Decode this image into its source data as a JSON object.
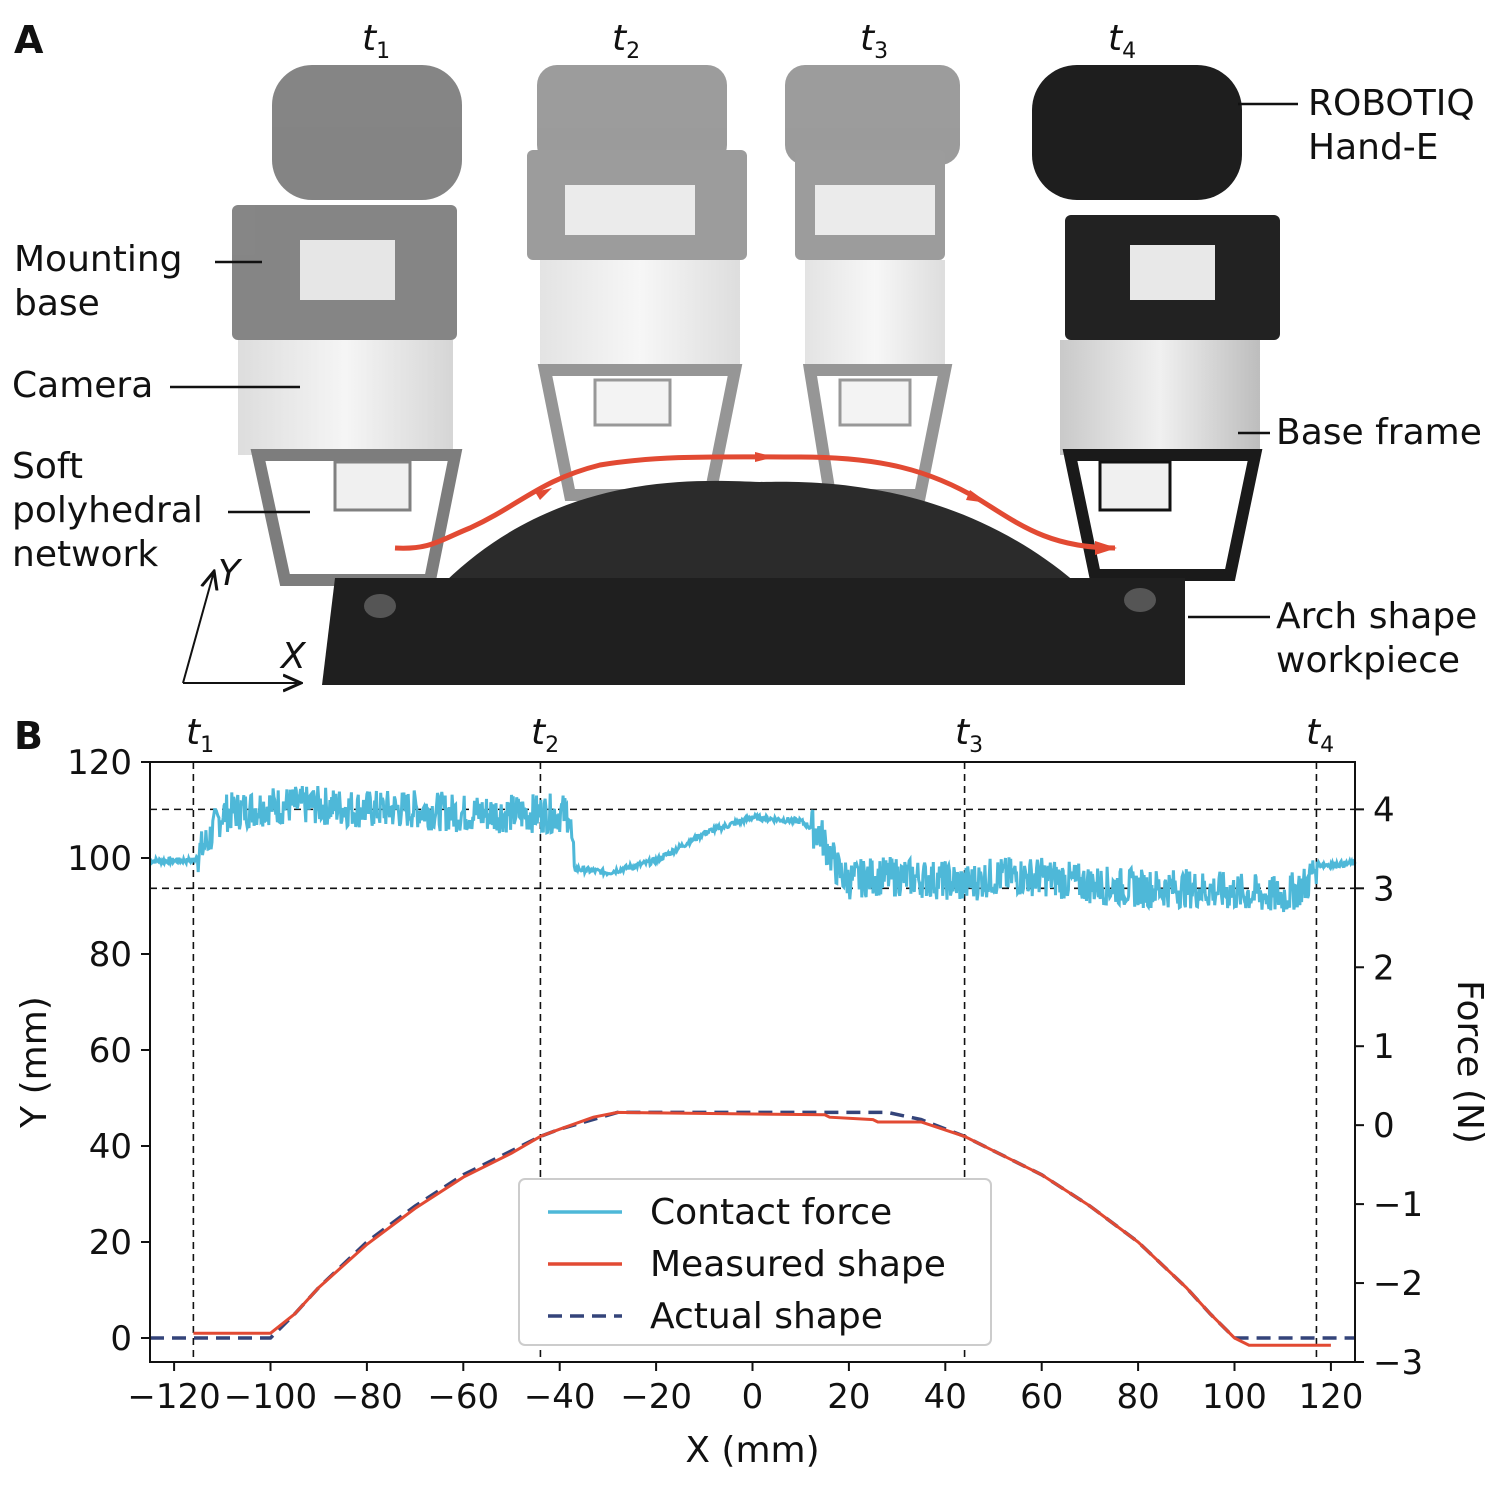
{
  "panel_a": {
    "label": "A",
    "time_labels": [
      {
        "t": "t",
        "sub": "1"
      },
      {
        "t": "t",
        "sub": "2"
      },
      {
        "t": "t",
        "sub": "3"
      },
      {
        "t": "t",
        "sub": "4"
      }
    ],
    "callouts": {
      "gripper": [
        "ROBOTIQ",
        "Hand-E"
      ],
      "mounting_base": [
        "Mounting",
        "base"
      ],
      "camera": [
        "Camera"
      ],
      "soft_network": [
        "Soft",
        "polyhedral",
        "network"
      ],
      "base_frame": [
        "Base frame"
      ],
      "workpiece": [
        "Arch shape",
        "workpiece"
      ]
    },
    "axis_y": "Y",
    "axis_x": "X",
    "colors": {
      "trajectory": "#e24a33",
      "body": "#2a2a2a"
    }
  },
  "panel_b": {
    "label": "B",
    "time_labels": [
      {
        "t": "t",
        "sub": "1"
      },
      {
        "t": "t",
        "sub": "2"
      },
      {
        "t": "t",
        "sub": "3"
      },
      {
        "t": "t",
        "sub": "4"
      }
    ]
  },
  "chart_data": {
    "type": "line",
    "xlabel": "X (mm)",
    "ylabel": "Y (mm)",
    "y2label": "Force (N)",
    "xlim": [
      -125,
      125
    ],
    "ylim": [
      -5,
      120
    ],
    "y2lim": [
      -3,
      4.6
    ],
    "xticks": [
      -120,
      -100,
      -80,
      -60,
      -40,
      -20,
      0,
      20,
      40,
      60,
      80,
      100,
      120
    ],
    "yticks": [
      0,
      20,
      40,
      60,
      80,
      100,
      120
    ],
    "y2ticks": [
      -3,
      -2,
      -1,
      0,
      1,
      2,
      3,
      4
    ],
    "vlines": [
      -116,
      -44,
      44,
      117
    ],
    "hlines_force": [
      3,
      4
    ],
    "legend": {
      "placement": "lower center",
      "entries": [
        "Contact force",
        "Measured shape",
        "Actual shape"
      ]
    },
    "colors": {
      "force": "#4eb8d8",
      "measured": "#e24a33",
      "actual": "#34447a"
    },
    "series": [
      {
        "name": "Actual shape",
        "style": "dashed",
        "axis": "left",
        "x": [
          -125,
          -100,
          -95,
          -90,
          -80,
          -70,
          -60,
          -50,
          -44,
          -40,
          -28,
          28,
          35,
          44,
          50,
          60,
          70,
          80,
          90,
          95,
          100,
          125
        ],
        "y": [
          0,
          0,
          5,
          10.5,
          20,
          27.5,
          34,
          39,
          42,
          43.5,
          47,
          47,
          45.5,
          42,
          39,
          34,
          27.5,
          20,
          10.5,
          5,
          0,
          0
        ]
      },
      {
        "name": "Measured shape",
        "style": "solid",
        "axis": "left",
        "x": [
          -116,
          -100,
          -95,
          -90,
          -80,
          -70,
          -60,
          -50,
          -44,
          -40,
          -33,
          -28,
          15,
          16,
          25,
          26,
          35,
          44,
          50,
          60,
          70,
          80,
          90,
          95,
          100,
          103,
          120
        ],
        "y": [
          1,
          1,
          5,
          10.5,
          19.5,
          27,
          33.5,
          38.5,
          42,
          43.5,
          46,
          47,
          46.5,
          46,
          45.5,
          45,
          45,
          42,
          39,
          34,
          27.5,
          20,
          10.5,
          5,
          0,
          -1.5,
          -1.5
        ]
      },
      {
        "name": "Contact force",
        "style": "solid",
        "axis": "right",
        "x": [
          -125,
          -120,
          -116,
          -113,
          -110,
          -100,
          -90,
          -80,
          -70,
          -60,
          -50,
          -40,
          -38,
          -37,
          -30,
          -20,
          -10,
          0,
          10,
          14,
          18,
          20,
          25,
          30,
          40,
          44,
          50,
          60,
          70,
          80,
          90,
          100,
          110,
          115,
          117,
          120,
          125
        ],
        "y": [
          3.35,
          3.35,
          3.35,
          3.6,
          3.95,
          4.05,
          4.05,
          4.0,
          4.0,
          3.95,
          3.95,
          3.95,
          3.95,
          3.25,
          3.2,
          3.35,
          3.7,
          3.9,
          3.85,
          3.7,
          3.2,
          3.1,
          3.15,
          3.15,
          3.1,
          3.05,
          3.15,
          3.15,
          3.05,
          3.0,
          3.0,
          2.95,
          2.9,
          3.05,
          3.3,
          3.3,
          3.32
        ],
        "noise_amplitude": 0.25
      }
    ]
  }
}
